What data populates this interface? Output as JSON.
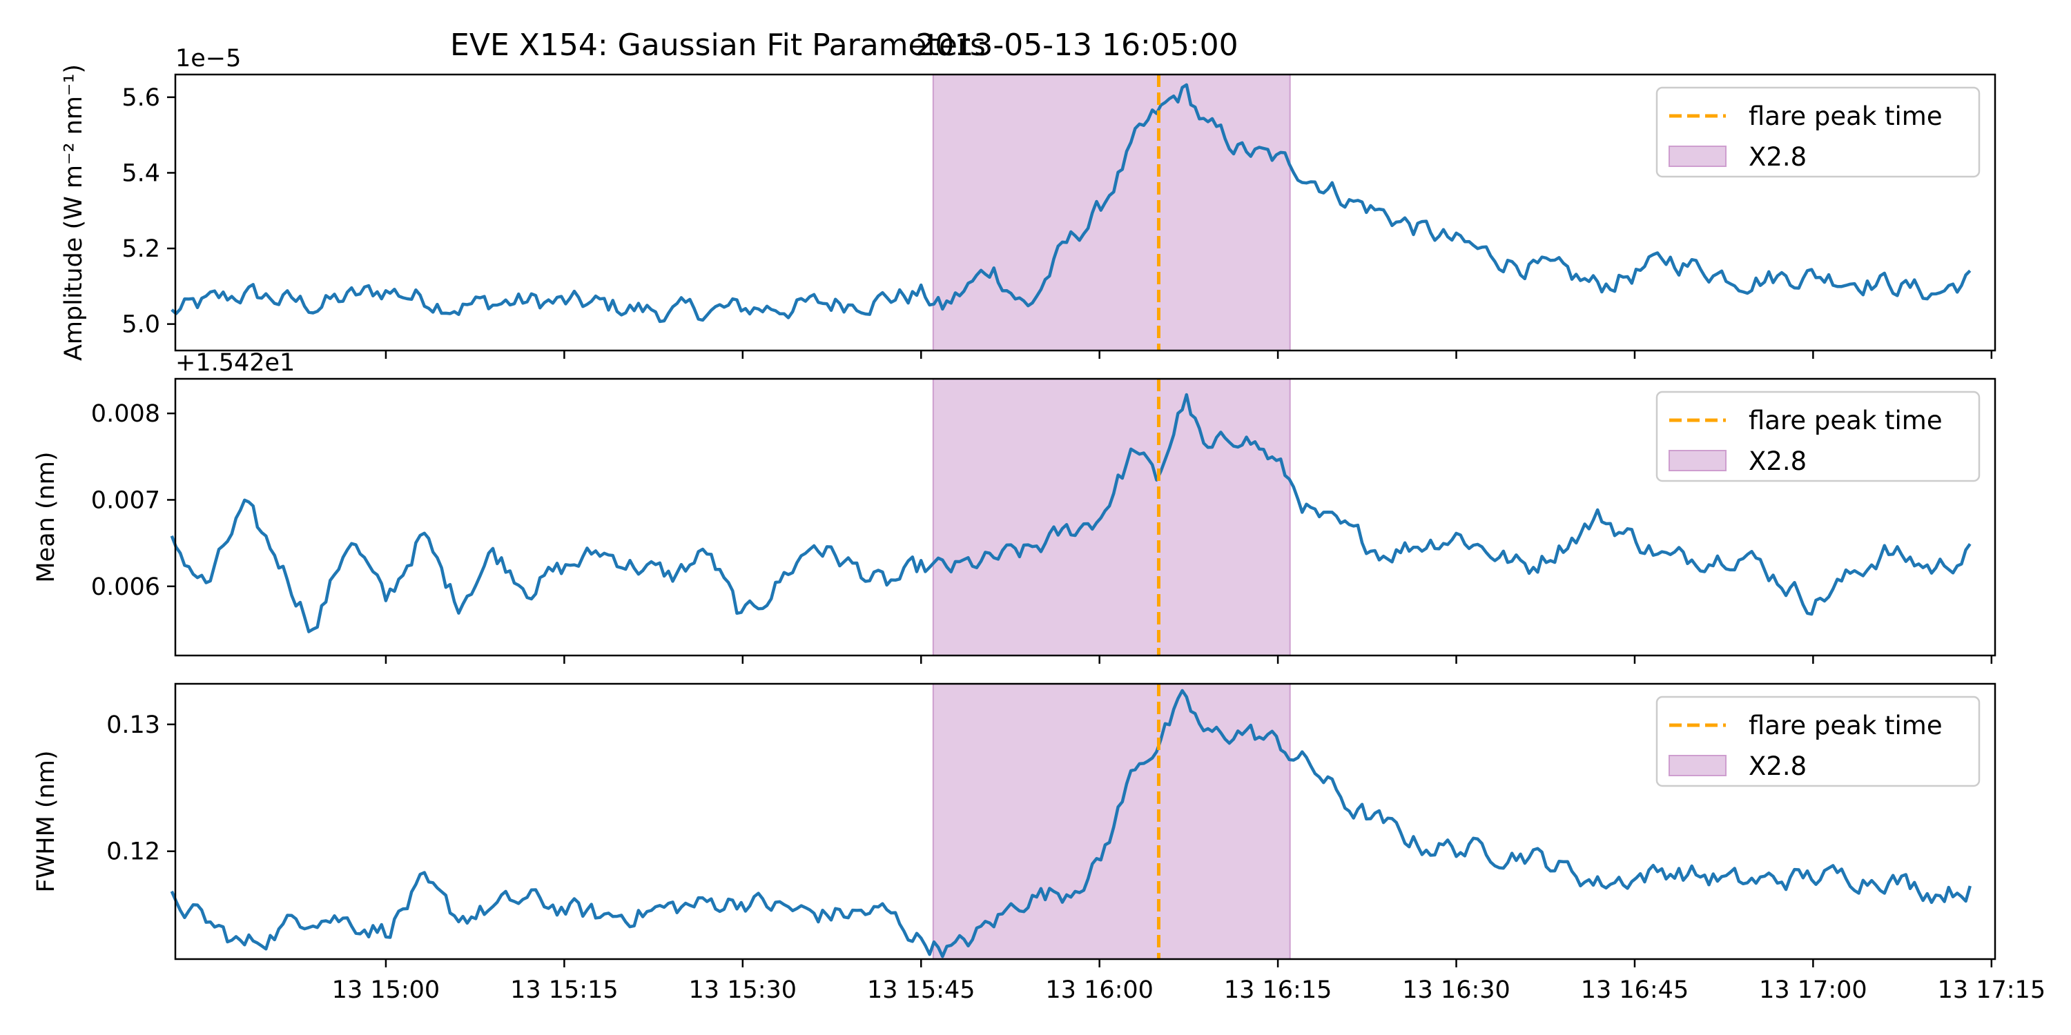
{
  "figure": {
    "title": "EVE X154: Gaussian Fit Parameters",
    "timestamp": "2013-05-13 16:05:00"
  },
  "colors": {
    "series": "#1f77b4",
    "flare_line": "#ffa500",
    "flare_band": "#ce9ecf"
  },
  "chart_data": [
    {
      "type": "line",
      "ylabel": "Amplitude (W m⁻² nm⁻¹)",
      "offset_text": "1e−5",
      "ylim": [
        4.93,
        5.66
      ],
      "yticks": [
        5.0,
        5.2,
        5.4,
        5.6
      ],
      "ytick_labels": [
        "5.0",
        "5.2",
        "5.4",
        "5.6"
      ],
      "keypoints": [
        [
          14.7,
          5.03
        ],
        [
          14.8,
          5.08
        ],
        [
          14.9,
          5.05
        ],
        [
          15.0,
          5.09
        ],
        [
          15.1,
          5.05
        ],
        [
          15.2,
          5.06
        ],
        [
          15.3,
          5.05
        ],
        [
          15.4,
          5.03
        ],
        [
          15.5,
          5.04
        ],
        [
          15.6,
          5.05
        ],
        [
          15.75,
          5.08
        ],
        [
          15.78,
          5.04
        ],
        [
          15.85,
          5.15
        ],
        [
          15.9,
          5.04
        ],
        [
          15.95,
          5.2
        ],
        [
          16.0,
          5.3
        ],
        [
          16.05,
          5.48
        ],
        [
          16.08,
          5.55
        ],
        [
          16.12,
          5.62
        ],
        [
          16.15,
          5.52
        ],
        [
          16.2,
          5.46
        ],
        [
          16.27,
          5.42
        ],
        [
          16.35,
          5.33
        ],
        [
          16.45,
          5.25
        ],
        [
          16.55,
          5.18
        ],
        [
          16.65,
          5.13
        ],
        [
          16.7,
          5.1
        ],
        [
          16.8,
          5.17
        ],
        [
          16.9,
          5.12
        ],
        [
          17.0,
          5.13
        ],
        [
          17.1,
          5.11
        ],
        [
          17.17,
          5.08
        ],
        [
          17.22,
          5.12
        ]
      ],
      "legend": [
        "flare peak time",
        "X2.8"
      ]
    },
    {
      "type": "line",
      "ylabel": "Mean (nm)",
      "offset_text": "+1.542e1",
      "ylim": [
        0.0052,
        0.0084
      ],
      "yticks": [
        0.006,
        0.007,
        0.008
      ],
      "ytick_labels": [
        "0.006",
        "0.007",
        "0.008"
      ],
      "keypoints": [
        [
          14.7,
          0.0065
        ],
        [
          14.75,
          0.006
        ],
        [
          14.8,
          0.0069
        ],
        [
          14.85,
          0.0063
        ],
        [
          14.9,
          0.0055
        ],
        [
          14.95,
          0.0066
        ],
        [
          15.0,
          0.0058
        ],
        [
          15.05,
          0.0066
        ],
        [
          15.1,
          0.0058
        ],
        [
          15.15,
          0.0064
        ],
        [
          15.2,
          0.006
        ],
        [
          15.3,
          0.0064
        ],
        [
          15.4,
          0.0061
        ],
        [
          15.45,
          0.0064
        ],
        [
          15.5,
          0.0056
        ],
        [
          15.6,
          0.0065
        ],
        [
          15.7,
          0.006
        ],
        [
          15.75,
          0.0062
        ],
        [
          15.8,
          0.0062
        ],
        [
          15.9,
          0.0064
        ],
        [
          16.0,
          0.0068
        ],
        [
          16.05,
          0.0076
        ],
        [
          16.08,
          0.0072
        ],
        [
          16.12,
          0.0082
        ],
        [
          16.15,
          0.0075
        ],
        [
          16.2,
          0.0078
        ],
        [
          16.25,
          0.0074
        ],
        [
          16.3,
          0.0068
        ],
        [
          16.4,
          0.0064
        ],
        [
          16.5,
          0.0066
        ],
        [
          16.6,
          0.0062
        ],
        [
          16.7,
          0.0068
        ],
        [
          16.8,
          0.0063
        ],
        [
          16.9,
          0.0064
        ],
        [
          17.0,
          0.0058
        ],
        [
          17.1,
          0.0064
        ],
        [
          17.17,
          0.0062
        ],
        [
          17.22,
          0.0064
        ]
      ],
      "legend": [
        "flare peak time",
        "X2.8"
      ]
    },
    {
      "type": "line",
      "ylabel": "FWHM (nm)",
      "offset_text": "",
      "ylim": [
        0.1115,
        0.1332
      ],
      "yticks": [
        0.12,
        0.13
      ],
      "ytick_labels": [
        "0.12",
        "0.13"
      ],
      "keypoints": [
        [
          14.7,
          0.1162
        ],
        [
          14.8,
          0.1125
        ],
        [
          14.9,
          0.1152
        ],
        [
          15.0,
          0.1138
        ],
        [
          15.05,
          0.1172
        ],
        [
          15.1,
          0.1148
        ],
        [
          15.2,
          0.1162
        ],
        [
          15.3,
          0.1148
        ],
        [
          15.4,
          0.1155
        ],
        [
          15.5,
          0.1162
        ],
        [
          15.6,
          0.115
        ],
        [
          15.7,
          0.1152
        ],
        [
          15.75,
          0.113
        ],
        [
          15.8,
          0.1122
        ],
        [
          15.9,
          0.1165
        ],
        [
          15.95,
          0.1168
        ],
        [
          16.0,
          0.119
        ],
        [
          16.05,
          0.1268
        ],
        [
          16.08,
          0.1285
        ],
        [
          16.12,
          0.1318
        ],
        [
          16.15,
          0.129
        ],
        [
          16.2,
          0.1295
        ],
        [
          16.25,
          0.1285
        ],
        [
          16.3,
          0.1265
        ],
        [
          16.35,
          0.1235
        ],
        [
          16.45,
          0.1205
        ],
        [
          16.55,
          0.12
        ],
        [
          16.6,
          0.1198
        ],
        [
          16.7,
          0.1175
        ],
        [
          16.8,
          0.1185
        ],
        [
          16.9,
          0.1175
        ],
        [
          17.0,
          0.118
        ],
        [
          17.1,
          0.118
        ],
        [
          17.17,
          0.1168
        ],
        [
          17.22,
          0.1172
        ]
      ],
      "legend": [
        "flare peak time",
        "X2.8"
      ]
    }
  ],
  "shared": {
    "xlim": [
      14.705,
      17.255
    ],
    "xticks": [
      15.0,
      15.25,
      15.5,
      15.75,
      16.0,
      16.25,
      16.5,
      16.75,
      17.0,
      17.25
    ],
    "xtick_labels": [
      "13 15:00",
      "13 15:15",
      "13 15:30",
      "13 15:45",
      "13 16:00",
      "13 16:15",
      "13 16:30",
      "13 16:45",
      "13 17:00",
      "13 17:15"
    ],
    "flare_peak": 16.083,
    "flare_band": [
      15.767,
      16.267
    ]
  }
}
